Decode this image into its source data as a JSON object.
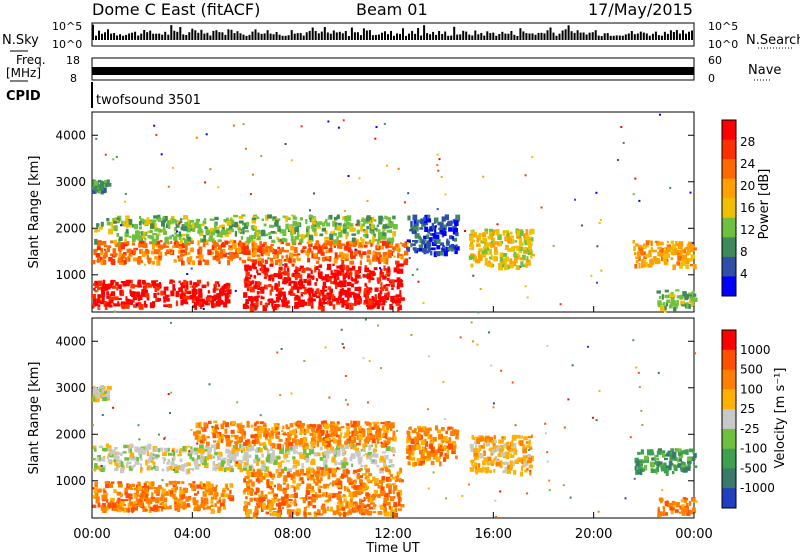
{
  "header": {
    "station": "Dome C East (fitACF)",
    "beam": "Beam 01",
    "date": "17/May/2015"
  },
  "strips": {
    "nsky_label": "N.Sky",
    "nsky_ticks": [
      "10^5",
      "10^0"
    ],
    "nsearch_label": "N.Search",
    "nsearch_ticks": [
      "10^5",
      "10^0"
    ],
    "freq_label_1": "Freq.",
    "freq_label_2": "[MHz]",
    "freq_ticks": [
      "18",
      "8"
    ],
    "nave_label": "Nave",
    "nave_ticks": [
      "60",
      "0"
    ],
    "cpid_label": "CPID",
    "cpid_value": "twofsound 3501"
  },
  "colors": {
    "power_scale": [
      "#0000ff",
      "#2f4fa8",
      "#3f8a5a",
      "#70c040",
      "#f0c000",
      "#ffa000",
      "#ff6a00",
      "#ff3000",
      "#ff0000"
    ],
    "velocity_scale": [
      "#2040c0",
      "#3a7a6a",
      "#3fa050",
      "#70c040",
      "#c8c8c8",
      "#ffb000",
      "#ff8000",
      "#ff5000",
      "#ff0000"
    ]
  },
  "chart_data": [
    {
      "type": "heatmap",
      "name": "power",
      "ylabel": "Slant Range [km]",
      "yticks": [
        "4000",
        "3000",
        "2000",
        "1000"
      ],
      "ylim": [
        200,
        4500
      ],
      "xlabel": "Time UT",
      "xticks": [
        "00:00",
        "04:00",
        "08:00",
        "12:00",
        "16:00",
        "20:00",
        "00:00"
      ],
      "xlim": [
        0,
        24
      ],
      "colorbar_label": "Power [dB]",
      "colorbar_ticks": [
        "28",
        "24",
        "20",
        "16",
        "12",
        "8",
        "4"
      ],
      "regions": [
        {
          "t0": 0.0,
          "t1": 5.5,
          "r0": 350,
          "r1": 900,
          "level": 8
        },
        {
          "t0": 0.0,
          "t1": 12.5,
          "r0": 1300,
          "r1": 1750,
          "level": 6
        },
        {
          "t0": 6.0,
          "t1": 12.3,
          "r0": 300,
          "r1": 1250,
          "level": 8
        },
        {
          "t0": 0.0,
          "t1": 12.0,
          "r0": 1750,
          "r1": 2300,
          "level": 3
        },
        {
          "t0": 12.5,
          "t1": 14.5,
          "r0": 1500,
          "r1": 2300,
          "level": 1
        },
        {
          "t0": 15.0,
          "t1": 17.5,
          "r0": 1200,
          "r1": 2000,
          "level": 4
        },
        {
          "t0": 21.5,
          "t1": 24.0,
          "r0": 1200,
          "r1": 1750,
          "level": 5
        },
        {
          "t0": 22.5,
          "t1": 24.0,
          "r0": 300,
          "r1": 700,
          "level": 3
        },
        {
          "t0": 0.0,
          "t1": 0.6,
          "r0": 2800,
          "r1": 3050,
          "level": 2
        }
      ]
    },
    {
      "type": "heatmap",
      "name": "velocity",
      "ylabel": "Slant Range [km]",
      "yticks": [
        "4000",
        "3000",
        "2000",
        "1000"
      ],
      "ylim": [
        200,
        4500
      ],
      "xlabel": "Time UT",
      "xticks": [
        "00:00",
        "04:00",
        "08:00",
        "12:00",
        "16:00",
        "20:00",
        "00:00"
      ],
      "xlim": [
        0,
        24
      ],
      "colorbar_label": "Velocity [m s⁻¹]",
      "colorbar_ticks": [
        "1000",
        "500",
        "100",
        "25",
        "-25",
        "-100",
        "-500",
        "-1000"
      ],
      "regions": [
        {
          "t0": 0.0,
          "t1": 5.5,
          "r0": 400,
          "r1": 1000,
          "level": 6
        },
        {
          "t0": 0.0,
          "t1": 12.0,
          "r0": 1250,
          "r1": 1800,
          "level": 4
        },
        {
          "t0": 6.0,
          "t1": 12.3,
          "r0": 300,
          "r1": 1300,
          "level": 6
        },
        {
          "t0": 4.0,
          "t1": 12.0,
          "r0": 1800,
          "r1": 2300,
          "level": 6
        },
        {
          "t0": 12.5,
          "t1": 14.5,
          "r0": 1400,
          "r1": 2200,
          "level": 6
        },
        {
          "t0": 15.0,
          "t1": 17.5,
          "r0": 1200,
          "r1": 2000,
          "level": 5
        },
        {
          "t0": 21.5,
          "t1": 24.0,
          "r0": 1200,
          "r1": 1700,
          "level": 2
        },
        {
          "t0": 22.5,
          "t1": 24.0,
          "r0": 300,
          "r1": 650,
          "level": 6
        },
        {
          "t0": 0.0,
          "t1": 0.6,
          "r0": 2800,
          "r1": 3050,
          "level": 4
        }
      ]
    }
  ]
}
